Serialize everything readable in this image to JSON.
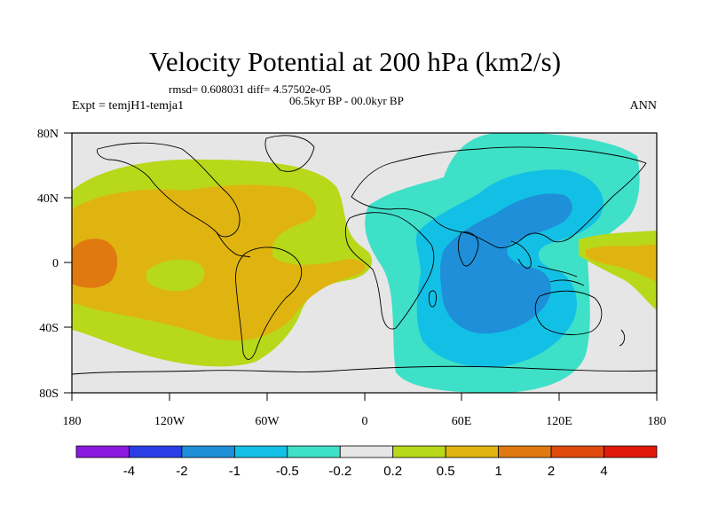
{
  "map": {
    "title": "Velocity Potential at 200 hPa (km2/s)",
    "stats": "rmsd= 0.608031 diff= 4.57502e-05",
    "period": "06.5kyr BP - 00.0kyr BP",
    "experiment": "Expt = temjH1-temja1",
    "season": "ANN",
    "lon_ticks": [
      "180",
      "120W",
      "60W",
      "0",
      "60E",
      "120E",
      "180"
    ],
    "lat_ticks": [
      "80N",
      "40N",
      "0",
      "40S",
      "80S"
    ],
    "background_color": "#e6e6e6",
    "field_regions": [
      {
        "name": "pacific-americas-positive",
        "sign": "positive",
        "max_level": "1 to 2",
        "color": "#e07a10"
      },
      {
        "name": "africa-indian-ocean-negative",
        "sign": "negative",
        "min_level": "-2 to -1",
        "color": "#1e8fd8"
      },
      {
        "name": "western-pacific-positive",
        "sign": "positive",
        "max_level": "0.5 to 1",
        "color": "#e8a812"
      }
    ]
  },
  "colorbar": {
    "levels": [
      "-4",
      "-2",
      "-1",
      "-0.5",
      "-0.2",
      "0.2",
      "0.5",
      "1",
      "2",
      "4"
    ],
    "colors": [
      "#8a1ae0",
      "#2b3ee6",
      "#1e8fd8",
      "#12c0e6",
      "#3fe0c8",
      "#e6e6e6",
      "#b8d81a",
      "#e0b410",
      "#e07a10",
      "#e04a0c",
      "#e01a0a"
    ]
  }
}
